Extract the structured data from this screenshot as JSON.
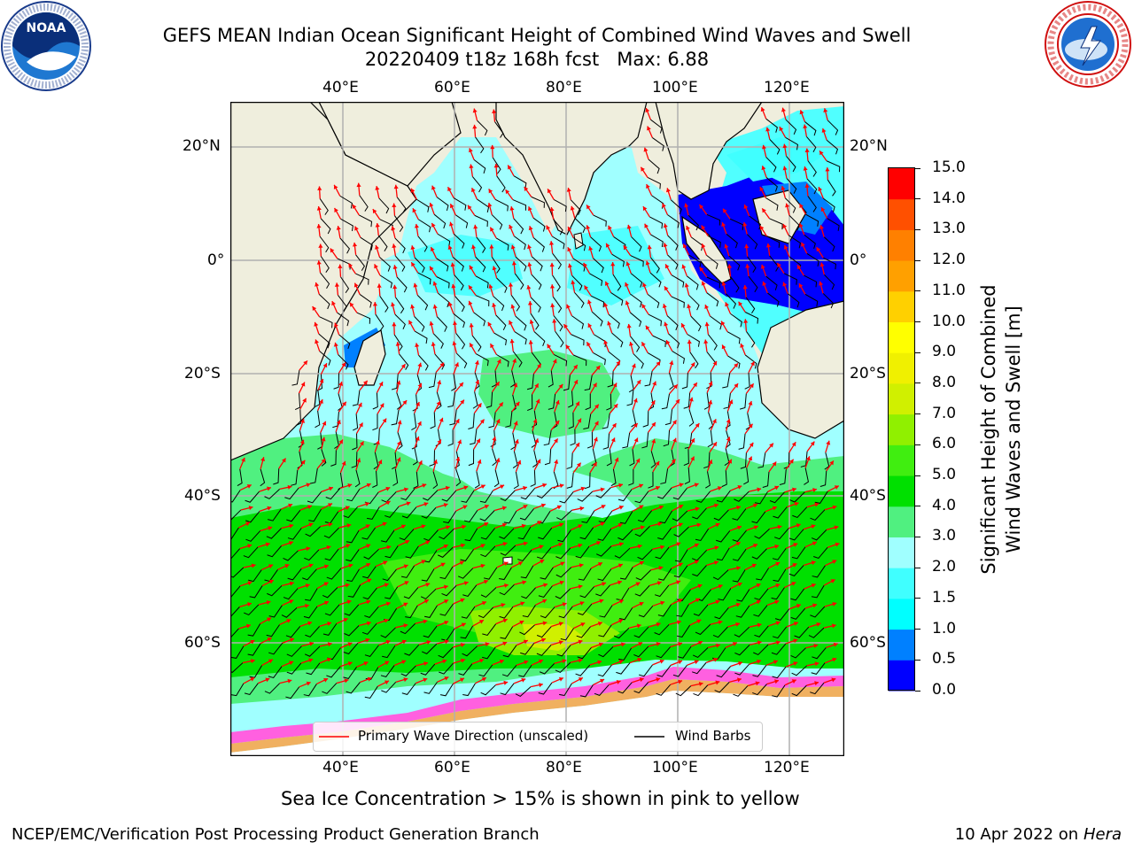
{
  "title": {
    "line1": "GEFS MEAN Indian Ocean Significant Height of Combined Wind Waves and Swell",
    "line2": "20220409 t18z 168h fcst   Max: 6.88"
  },
  "logos": {
    "noaa": {
      "text": "NOAA",
      "ring_text": "NATIONAL OCEANIC AND ATMOSPHERIC ADMINISTRATION · U.S. DEPARTMENT OF COMMERCE"
    },
    "nws": {
      "ring_text": "NATIONAL WEATHER SERVICE"
    }
  },
  "map": {
    "lon_labels": [
      "40°E",
      "60°E",
      "80°E",
      "100°E",
      "120°E"
    ],
    "lat_labels_left": [
      "20°N",
      "0°",
      "20°S",
      "40°S",
      "60°S"
    ],
    "lat_labels_right": [
      "20°N",
      "0°",
      "20°S",
      "40°S",
      "60°S"
    ],
    "land_color": "#efeedd",
    "max_value": 6.88
  },
  "legend": {
    "wave_direction": "Primary Wave Direction (unscaled)",
    "wind_barbs": "Wind Barbs",
    "wave_color": "#ff0000",
    "barb_color": "#000000"
  },
  "colorbar": {
    "label_line1": "Significant Height of Combined",
    "label_line2": "Wind Waves and Swell [m]",
    "ticks": [
      "0.0",
      "0.5",
      "1.0",
      "1.5",
      "2.0",
      "3.0",
      "4.0",
      "5.0",
      "6.0",
      "7.0",
      "8.0",
      "9.0",
      "10.0",
      "11.0",
      "12.0",
      "13.0",
      "14.0",
      "15.0"
    ],
    "colors": [
      "#0000ff",
      "#0080ff",
      "#00ffff",
      "#40ffff",
      "#a0ffff",
      "#50f080",
      "#00e000",
      "#40ee10",
      "#90f000",
      "#d0f000",
      "#f0f000",
      "#ffff00",
      "#ffd000",
      "#ffa000",
      "#ff8000",
      "#ff5000",
      "#ff0000"
    ]
  },
  "note": "Sea Ice Concentration > 15% is shown in pink to yellow",
  "footer": {
    "left": "NCEP/EMC/Verification Post Processing Product Generation Branch",
    "date": "10 Apr 2022 on ",
    "host": "Hera"
  }
}
